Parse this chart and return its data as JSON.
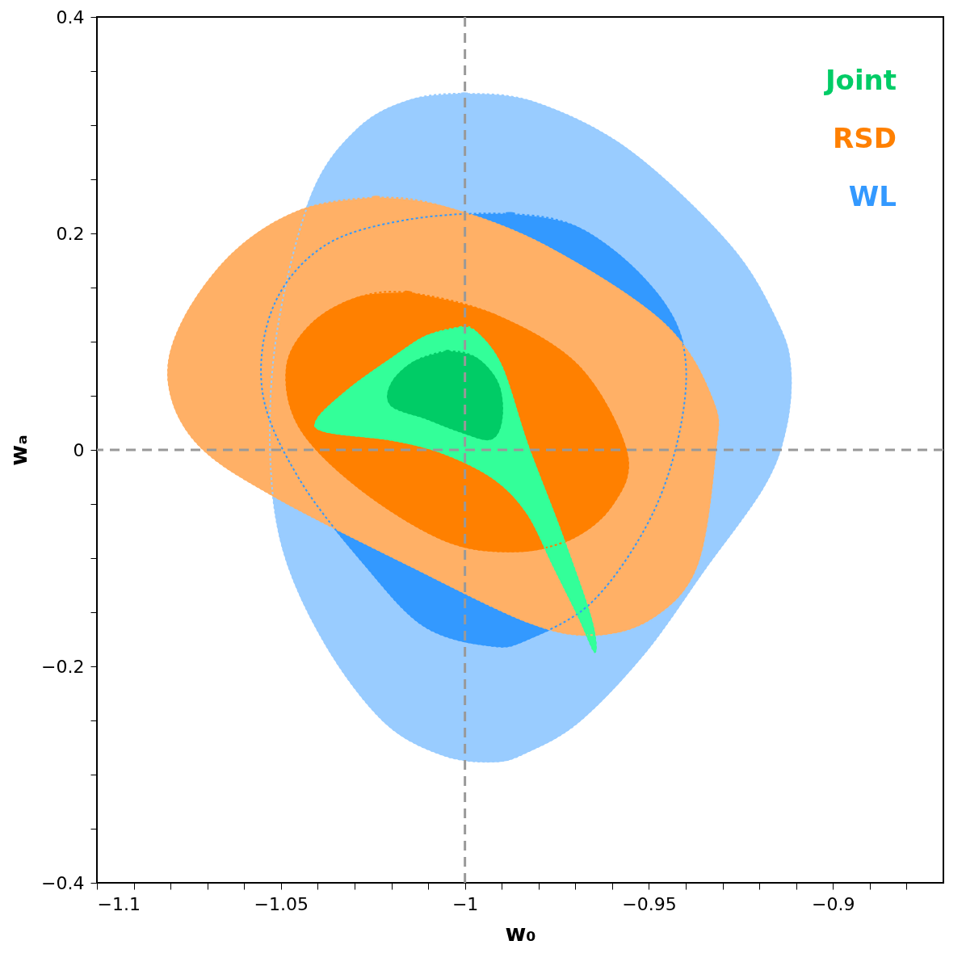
{
  "chart_data": {
    "type": "area",
    "xlabel": "w₀",
    "ylabel": "wₐ",
    "xlim": [
      -1.1,
      -0.87
    ],
    "ylim": [
      -0.4,
      0.4
    ],
    "xticks": [
      {
        "value": -1.1,
        "label": "−1.1"
      },
      {
        "value": -1.09,
        "label": null
      },
      {
        "value": -1.08,
        "label": null
      },
      {
        "value": -1.07,
        "label": null
      },
      {
        "value": -1.06,
        "label": null
      },
      {
        "value": -1.05,
        "label": "−1.05"
      },
      {
        "value": -1.04,
        "label": null
      },
      {
        "value": -1.03,
        "label": null
      },
      {
        "value": -1.02,
        "label": null
      },
      {
        "value": -1.01,
        "label": null
      },
      {
        "value": -1.0,
        "label": "−1"
      },
      {
        "value": -0.99,
        "label": null
      },
      {
        "value": -0.98,
        "label": null
      },
      {
        "value": -0.97,
        "label": null
      },
      {
        "value": -0.96,
        "label": null
      },
      {
        "value": -0.95,
        "label": "−0.95"
      },
      {
        "value": -0.94,
        "label": null
      },
      {
        "value": -0.93,
        "label": null
      },
      {
        "value": -0.92,
        "label": null
      },
      {
        "value": -0.91,
        "label": null
      },
      {
        "value": -0.9,
        "label": "−0.9"
      },
      {
        "value": -0.89,
        "label": null
      },
      {
        "value": -0.88,
        "label": null
      }
    ],
    "yticks": [
      {
        "value": -0.4,
        "label": "−0.4"
      },
      {
        "value": -0.35,
        "label": null
      },
      {
        "value": -0.3,
        "label": null
      },
      {
        "value": -0.25,
        "label": null
      },
      {
        "value": -0.2,
        "label": "−0.2"
      },
      {
        "value": -0.15,
        "label": null
      },
      {
        "value": -0.1,
        "label": null
      },
      {
        "value": -0.05,
        "label": null
      },
      {
        "value": 0,
        "label": "0"
      },
      {
        "value": 0.05,
        "label": null
      },
      {
        "value": 0.1,
        "label": null
      },
      {
        "value": 0.15,
        "label": null
      },
      {
        "value": 0.2,
        "label": "0.2"
      },
      {
        "value": 0.25,
        "label": null
      },
      {
        "value": 0.3,
        "label": null
      },
      {
        "value": 0.35,
        "label": null
      },
      {
        "value": 0.4,
        "label": "0.4"
      }
    ],
    "grid": false,
    "legend": "top right",
    "ref_lines": [
      {
        "axis": "x",
        "value": -1.0,
        "color": "#999999",
        "line_style": "dashed"
      },
      {
        "axis": "y",
        "value": 0,
        "color": "#999999",
        "line_style": "dashed"
      }
    ],
    "series": [
      {
        "color": "#99ccff",
        "x": [
          -1.0,
          -0.981,
          -0.9555,
          -0.928,
          -0.915,
          -0.9115,
          -0.913,
          -0.919,
          -0.935,
          -0.951,
          -0.969,
          -0.983,
          -0.992,
          -1.006,
          -1.022,
          -1.038,
          -1.0495,
          -1.053,
          -1.0507,
          -1.0415,
          -1.029,
          -1.015
        ],
        "values": [
          0.329,
          0.321,
          0.277,
          0.189,
          0.117,
          0.073,
          0.017,
          -0.035,
          -0.111,
          -0.187,
          -0.251,
          -0.279,
          -0.288,
          -0.282,
          -0.251,
          -0.179,
          -0.091,
          0.005,
          0.117,
          0.237,
          0.297,
          0.323
        ]
      },
      {
        "name": "WL",
        "color": "#3399ff",
        "x": [
          -0.988,
          -0.969,
          -0.951,
          -0.941,
          -0.941,
          -0.949,
          -0.965,
          -0.983,
          -0.993,
          -1.011,
          -1.027,
          -1.045,
          -1.055,
          -1.052,
          -1.038,
          -1.015
        ],
        "values": [
          0.218,
          0.205,
          0.157,
          0.101,
          0.029,
          -0.059,
          -0.139,
          -0.175,
          -0.181,
          -0.163,
          -0.107,
          -0.027,
          0.053,
          0.133,
          0.189,
          0.213
        ]
      },
      {
        "color": "#ffb066",
        "x": [
          -1.0243,
          -1.006,
          -0.9784,
          -0.946,
          -0.9326,
          -0.932,
          -0.937,
          -0.949,
          -0.965,
          -0.983,
          -1.015,
          -1.0518,
          -1.0725,
          -1.0805,
          -1.077,
          -1.0633,
          -1.045
        ],
        "values": [
          0.233,
          0.225,
          0.189,
          0.117,
          0.045,
          -0.003,
          -0.107,
          -0.155,
          -0.171,
          -0.159,
          -0.107,
          -0.043,
          0.005,
          0.061,
          0.117,
          0.181,
          0.221
        ]
      },
      {
        "name": "RSD",
        "color": "#ff8000",
        "x": [
          -1.015,
          -0.992,
          -0.969,
          -0.956,
          -0.96,
          -0.9716,
          -0.9876,
          -1.006,
          -1.0289,
          -1.045,
          -1.0484,
          -1.0415,
          -1.0289
        ],
        "values": [
          0.145,
          0.125,
          0.077,
          -0.003,
          -0.051,
          -0.083,
          -0.094,
          -0.083,
          -0.035,
          0.021,
          0.077,
          0.117,
          0.141
        ]
      },
      {
        "color": "#33ff99",
        "x": [
          -1.0014,
          -0.997,
          -0.99,
          -0.983,
          -0.974,
          -0.9658,
          -0.9647,
          -0.969,
          -0.976,
          -0.983,
          -0.992,
          -1.006,
          -1.0197,
          -1.038,
          -1.04,
          -1.0312,
          -1.0197,
          -1.0106
        ],
        "values": [
          0.113,
          0.109,
          0.077,
          0.005,
          -0.075,
          -0.155,
          -0.187,
          -0.155,
          -0.107,
          -0.059,
          -0.027,
          -0.003,
          0.009,
          0.017,
          0.029,
          0.057,
          0.085,
          0.105
        ]
      },
      {
        "name": "Joint",
        "color": "#00cc66",
        "x": [
          -1.0048,
          -0.997,
          -0.991,
          -0.99,
          -0.993,
          -1.0014,
          -1.0106,
          -1.02,
          -1.02,
          -1.014
        ],
        "values": [
          0.091,
          0.085,
          0.061,
          0.029,
          0.01,
          0.017,
          0.029,
          0.041,
          0.061,
          0.081
        ]
      }
    ]
  }
}
